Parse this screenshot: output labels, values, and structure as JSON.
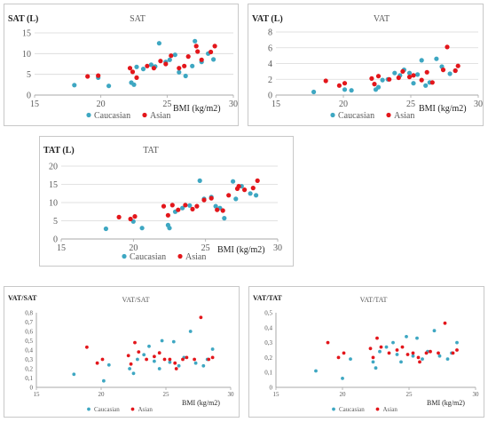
{
  "colors": {
    "caucasian": "#3ea7c2",
    "asian": "#e3161b",
    "axis": "#a8a8a8",
    "grid": "#d9d9d9",
    "text": "#595959"
  },
  "chart_data": [
    {
      "id": "sat",
      "type": "scatter",
      "title": "SAT",
      "ylabel": "SAT (L)",
      "xlabel": "BMI (kg/m2)",
      "xlim": [
        15,
        30
      ],
      "ylim": [
        0,
        15
      ],
      "xticks": [
        "15",
        "20",
        "25",
        "30"
      ],
      "yticks": [
        "0",
        "5",
        "10",
        "15"
      ],
      "grid": true,
      "legend": "bottom",
      "series": [
        {
          "name": "Caucasian",
          "points": [
            [
              18,
              2.4
            ],
            [
              19.8,
              4.2
            ],
            [
              20.6,
              2.2
            ],
            [
              22.3,
              3
            ],
            [
              22.5,
              2.5
            ],
            [
              22.7,
              6.8
            ],
            [
              23.2,
              6.3
            ],
            [
              23.8,
              7.3
            ],
            [
              24.1,
              6.9
            ],
            [
              24.4,
              12.5
            ],
            [
              24.9,
              8
            ],
            [
              25.2,
              8.5
            ],
            [
              25.6,
              9.7
            ],
            [
              25.9,
              5.5
            ],
            [
              26.4,
              4.6
            ],
            [
              26.9,
              7
            ],
            [
              27.1,
              13
            ],
            [
              27.6,
              8
            ],
            [
              28.1,
              10
            ],
            [
              28.5,
              8.6
            ]
          ]
        },
        {
          "name": "Asian",
          "points": [
            [
              19,
              4.5
            ],
            [
              19.8,
              4.7
            ],
            [
              22.2,
              6.5
            ],
            [
              22.4,
              5.6
            ],
            [
              22.7,
              4.2
            ],
            [
              23.5,
              7
            ],
            [
              24,
              6.5
            ],
            [
              24.5,
              8.2
            ],
            [
              24.9,
              7.5
            ],
            [
              25.3,
              9.5
            ],
            [
              25.9,
              6.5
            ],
            [
              26.3,
              7
            ],
            [
              26.6,
              9.3
            ],
            [
              27.2,
              11.8
            ],
            [
              27.3,
              10.5
            ],
            [
              27.6,
              8.5
            ],
            [
              28.3,
              10.4
            ],
            [
              28.6,
              11.8
            ]
          ]
        }
      ]
    },
    {
      "id": "vat",
      "type": "scatter",
      "title": "VAT",
      "ylabel": "VAT (L)",
      "xlabel": "BMI (kg/m2)",
      "xlim": [
        15,
        30
      ],
      "ylim": [
        0,
        8
      ],
      "xticks": [
        "15",
        "20",
        "25",
        "30"
      ],
      "yticks": [
        "0",
        "2",
        "4",
        "6",
        "8"
      ],
      "grid": true,
      "legend": "bottom",
      "series": [
        {
          "name": "Caucasian",
          "points": [
            [
              17.8,
              0.4
            ],
            [
              20.1,
              0.7
            ],
            [
              20.6,
              0.6
            ],
            [
              22.4,
              0.7
            ],
            [
              22.6,
              1
            ],
            [
              22.9,
              1.9
            ],
            [
              23.3,
              2
            ],
            [
              23.8,
              2.8
            ],
            [
              24.2,
              2.5
            ],
            [
              24.5,
              3.2
            ],
            [
              24.9,
              2.8
            ],
            [
              25.2,
              1.5
            ],
            [
              25.5,
              2.6
            ],
            [
              25.8,
              4.4
            ],
            [
              26.1,
              1.2
            ],
            [
              26.4,
              1.6
            ],
            [
              26.9,
              4.6
            ],
            [
              27.3,
              3.6
            ],
            [
              27.9,
              2.7
            ],
            [
              28.3,
              3.1
            ]
          ]
        },
        {
          "name": "Asian",
          "points": [
            [
              18.7,
              1.8
            ],
            [
              19.7,
              1.2
            ],
            [
              20.1,
              1.5
            ],
            [
              22.1,
              2.1
            ],
            [
              22.3,
              1.4
            ],
            [
              22.6,
              2.4
            ],
            [
              23.4,
              2
            ],
            [
              24.1,
              2.2
            ],
            [
              24.4,
              3
            ],
            [
              24.9,
              2.3
            ],
            [
              25.2,
              2.5
            ],
            [
              25.8,
              1.9
            ],
            [
              26.2,
              2.9
            ],
            [
              26.6,
              1.6
            ],
            [
              27.4,
              3.2
            ],
            [
              27.7,
              6.1
            ],
            [
              28.3,
              3.1
            ],
            [
              28.5,
              3.7
            ]
          ]
        }
      ]
    },
    {
      "id": "tat",
      "type": "scatter",
      "title": "TAT",
      "ylabel": "TAT (L)",
      "xlabel": "BMI (kg/m2)",
      "xlim": [
        15,
        30
      ],
      "ylim": [
        0,
        20
      ],
      "xticks": [
        "15",
        "20",
        "25",
        "30"
      ],
      "yticks": [
        "0",
        "5",
        "10",
        "15",
        "20"
      ],
      "grid": true,
      "legend": "bottom",
      "series": [
        {
          "name": "Caucasian",
          "points": [
            [
              18.1,
              2.8
            ],
            [
              20,
              4.8
            ],
            [
              20.6,
              3
            ],
            [
              22.4,
              3.8
            ],
            [
              22.5,
              3
            ],
            [
              22.9,
              7.5
            ],
            [
              23.4,
              8.5
            ],
            [
              23.9,
              9.2
            ],
            [
              24.6,
              16
            ],
            [
              24.9,
              11
            ],
            [
              25.4,
              11.5
            ],
            [
              25.7,
              9
            ],
            [
              26,
              8.5
            ],
            [
              26.3,
              5.7
            ],
            [
              26.9,
              15.8
            ],
            [
              27.1,
              11
            ],
            [
              27.5,
              14.5
            ],
            [
              28.1,
              12.5
            ],
            [
              28.5,
              12
            ]
          ]
        },
        {
          "name": "Asian",
          "points": [
            [
              19,
              6
            ],
            [
              19.8,
              5.5
            ],
            [
              20.1,
              6.2
            ],
            [
              22.1,
              9
            ],
            [
              22.4,
              6.5
            ],
            [
              22.7,
              9.3
            ],
            [
              23.1,
              8
            ],
            [
              23.6,
              9.3
            ],
            [
              24.1,
              8.2
            ],
            [
              24.4,
              9
            ],
            [
              24.9,
              10.7
            ],
            [
              25.4,
              11.2
            ],
            [
              25.8,
              8
            ],
            [
              26.2,
              7.8
            ],
            [
              26.6,
              12
            ],
            [
              27.2,
              13.8
            ],
            [
              27.3,
              14.5
            ],
            [
              27.7,
              13.5
            ],
            [
              28.3,
              14
            ],
            [
              28.6,
              16
            ]
          ]
        }
      ]
    },
    {
      "id": "vat-sat",
      "type": "scatter",
      "title": "VAT/SAT",
      "ylabel": "VAT/SAT",
      "xlabel": "BMI (kg/m2)",
      "xlim": [
        15,
        30
      ],
      "ylim": [
        0,
        0.8
      ],
      "xticks": [
        "15",
        "20",
        "25",
        "30"
      ],
      "yticks": [
        "0",
        "0,1",
        "0,2",
        "0,3",
        "0,4",
        "0,5",
        "0,6",
        "0,7",
        "0,8"
      ],
      "grid": false,
      "legend": "bottom",
      "series": [
        {
          "name": "Caucasian",
          "points": [
            [
              17.9,
              0.14
            ],
            [
              20.2,
              0.07
            ],
            [
              20.6,
              0.24
            ],
            [
              22.2,
              0.2
            ],
            [
              22.5,
              0.15
            ],
            [
              22.8,
              0.3
            ],
            [
              23.3,
              0.35
            ],
            [
              23.7,
              0.44
            ],
            [
              24.1,
              0.28
            ],
            [
              24.5,
              0.2
            ],
            [
              24.7,
              0.5
            ],
            [
              25.3,
              0.27
            ],
            [
              25.6,
              0.49
            ],
            [
              26,
              0.23
            ],
            [
              26.4,
              0.32
            ],
            [
              26.9,
              0.6
            ],
            [
              27.3,
              0.26
            ],
            [
              27.9,
              0.23
            ],
            [
              28.2,
              0.3
            ],
            [
              28.6,
              0.41
            ]
          ]
        },
        {
          "name": "Asian",
          "points": [
            [
              18.9,
              0.43
            ],
            [
              19.7,
              0.26
            ],
            [
              20.1,
              0.3
            ],
            [
              22.1,
              0.34
            ],
            [
              22.3,
              0.25
            ],
            [
              22.6,
              0.48
            ],
            [
              22.9,
              0.38
            ],
            [
              23.5,
              0.3
            ],
            [
              24.1,
              0.33
            ],
            [
              24.5,
              0.37
            ],
            [
              24.9,
              0.3
            ],
            [
              25.3,
              0.3
            ],
            [
              25.7,
              0.26
            ],
            [
              25.8,
              0.2
            ],
            [
              26.3,
              0.3
            ],
            [
              26.6,
              0.32
            ],
            [
              27.2,
              0.3
            ],
            [
              27.7,
              0.75
            ],
            [
              28.3,
              0.3
            ],
            [
              28.6,
              0.32
            ]
          ]
        }
      ]
    },
    {
      "id": "vat-tat",
      "type": "scatter",
      "title": "VAT/TAT",
      "ylabel": "VAT/TAT",
      "xlabel": "BMI (kg/m2)",
      "xlim": [
        15,
        30
      ],
      "ylim": [
        0,
        0.5
      ],
      "xticks": [
        "15",
        "20",
        "25",
        "30"
      ],
      "yticks": [
        "0",
        "0,1",
        "0,2",
        "0,3",
        "0,4",
        "0,5"
      ],
      "grid": false,
      "legend": "bottom",
      "series": [
        {
          "name": "Caucasian",
          "points": [
            [
              18,
              0.11
            ],
            [
              20,
              0.06
            ],
            [
              20.6,
              0.19
            ],
            [
              22.3,
              0.17
            ],
            [
              22.5,
              0.13
            ],
            [
              22.8,
              0.24
            ],
            [
              23.3,
              0.27
            ],
            [
              23.8,
              0.3
            ],
            [
              24.1,
              0.22
            ],
            [
              24.4,
              0.17
            ],
            [
              24.8,
              0.34
            ],
            [
              25.3,
              0.21
            ],
            [
              25.6,
              0.33
            ],
            [
              26,
              0.19
            ],
            [
              26.4,
              0.24
            ],
            [
              26.9,
              0.38
            ],
            [
              27.3,
              0.21
            ],
            [
              27.9,
              0.19
            ],
            [
              28.2,
              0.23
            ],
            [
              28.6,
              0.3
            ]
          ]
        },
        {
          "name": "Asian",
          "points": [
            [
              18.9,
              0.3
            ],
            [
              19.7,
              0.2
            ],
            [
              20.1,
              0.23
            ],
            [
              22.1,
              0.26
            ],
            [
              22.3,
              0.2
            ],
            [
              22.6,
              0.33
            ],
            [
              22.9,
              0.27
            ],
            [
              23.5,
              0.23
            ],
            [
              24.1,
              0.25
            ],
            [
              24.5,
              0.27
            ],
            [
              24.9,
              0.22
            ],
            [
              25.3,
              0.23
            ],
            [
              25.7,
              0.2
            ],
            [
              25.8,
              0.17
            ],
            [
              26.3,
              0.23
            ],
            [
              26.6,
              0.24
            ],
            [
              27.2,
              0.23
            ],
            [
              27.7,
              0.43
            ],
            [
              28.3,
              0.23
            ],
            [
              28.6,
              0.25
            ]
          ]
        }
      ]
    }
  ]
}
